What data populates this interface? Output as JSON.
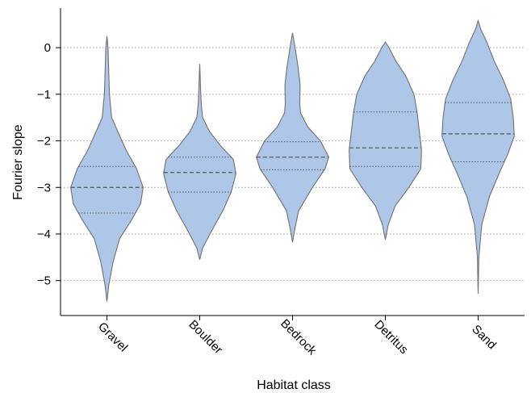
{
  "chart_data": {
    "type": "violin",
    "title": "",
    "xlabel": "Habitat class",
    "ylabel": "Fourier slope",
    "ylim": [
      -5.75,
      0.85
    ],
    "yticks": [
      0,
      -1,
      -2,
      -3,
      -4,
      -5
    ],
    "ytick_labels": [
      "0",
      "−1",
      "−2",
      "−3",
      "−4",
      "−5"
    ],
    "grid": "horizontal dotted",
    "fill_color": "#aec7e8",
    "edge_color": "#707070",
    "categories": [
      "Gravel",
      "Boulder",
      "Bedrock",
      "Detritus",
      "Sand"
    ],
    "violins": [
      {
        "category": "Gravel",
        "min": -5.45,
        "max": 0.25,
        "quartiles": [
          -3.55,
          -3.0,
          -2.55
        ],
        "profile": [
          [
            -5.45,
            0.0
          ],
          [
            -5.1,
            0.05
          ],
          [
            -4.6,
            0.17
          ],
          [
            -4.1,
            0.35
          ],
          [
            -3.7,
            0.68
          ],
          [
            -3.35,
            0.93
          ],
          [
            -3.0,
            1.0
          ],
          [
            -2.6,
            0.82
          ],
          [
            -2.2,
            0.53
          ],
          [
            -1.8,
            0.3
          ],
          [
            -1.5,
            0.13
          ],
          [
            -1.0,
            0.07
          ],
          [
            -0.5,
            0.05
          ],
          [
            0.0,
            0.03
          ],
          [
            0.25,
            0.0
          ]
        ]
      },
      {
        "category": "Boulder",
        "min": -4.55,
        "max": -0.35,
        "quartiles": [
          -3.1,
          -2.68,
          -2.35
        ],
        "profile": [
          [
            -4.55,
            0.0
          ],
          [
            -4.3,
            0.08
          ],
          [
            -3.9,
            0.35
          ],
          [
            -3.5,
            0.64
          ],
          [
            -3.1,
            0.87
          ],
          [
            -2.7,
            1.0
          ],
          [
            -2.4,
            0.93
          ],
          [
            -2.1,
            0.57
          ],
          [
            -1.8,
            0.27
          ],
          [
            -1.5,
            0.08
          ],
          [
            -1.2,
            0.04
          ],
          [
            -0.8,
            0.02
          ],
          [
            -0.35,
            0.0
          ]
        ]
      },
      {
        "category": "Bedrock",
        "min": -4.18,
        "max": 0.32,
        "quartiles": [
          -2.62,
          -2.35,
          -2.02
        ],
        "profile": [
          [
            -4.18,
            0.0
          ],
          [
            -3.9,
            0.06
          ],
          [
            -3.5,
            0.17
          ],
          [
            -3.0,
            0.55
          ],
          [
            -2.6,
            0.9
          ],
          [
            -2.35,
            1.0
          ],
          [
            -2.0,
            0.77
          ],
          [
            -1.7,
            0.42
          ],
          [
            -1.4,
            0.22
          ],
          [
            -1.2,
            0.2
          ],
          [
            -0.8,
            0.21
          ],
          [
            -0.4,
            0.15
          ],
          [
            0.0,
            0.07
          ],
          [
            0.32,
            0.0
          ]
        ]
      },
      {
        "category": "Detritus",
        "min": -4.12,
        "max": 0.12,
        "quartiles": [
          -2.55,
          -2.15,
          -1.38
        ],
        "profile": [
          [
            -4.12,
            0.0
          ],
          [
            -3.8,
            0.08
          ],
          [
            -3.4,
            0.27
          ],
          [
            -3.0,
            0.65
          ],
          [
            -2.6,
            0.98
          ],
          [
            -2.2,
            1.0
          ],
          [
            -1.8,
            0.94
          ],
          [
            -1.4,
            0.88
          ],
          [
            -1.0,
            0.79
          ],
          [
            -0.6,
            0.56
          ],
          [
            -0.3,
            0.3
          ],
          [
            0.0,
            0.1
          ],
          [
            0.12,
            0.0
          ]
        ]
      },
      {
        "category": "Sand",
        "min": -5.28,
        "max": 0.58,
        "quartiles": [
          -2.45,
          -1.85,
          -1.18
        ],
        "profile": [
          [
            -5.28,
            0.0
          ],
          [
            -4.5,
            0.02
          ],
          [
            -3.8,
            0.1
          ],
          [
            -3.2,
            0.31
          ],
          [
            -2.7,
            0.58
          ],
          [
            -2.3,
            0.81
          ],
          [
            -1.9,
            1.0
          ],
          [
            -1.5,
            0.97
          ],
          [
            -1.1,
            0.9
          ],
          [
            -0.7,
            0.7
          ],
          [
            -0.3,
            0.45
          ],
          [
            0.1,
            0.25
          ],
          [
            0.4,
            0.07
          ],
          [
            0.58,
            0.0
          ]
        ]
      }
    ]
  }
}
